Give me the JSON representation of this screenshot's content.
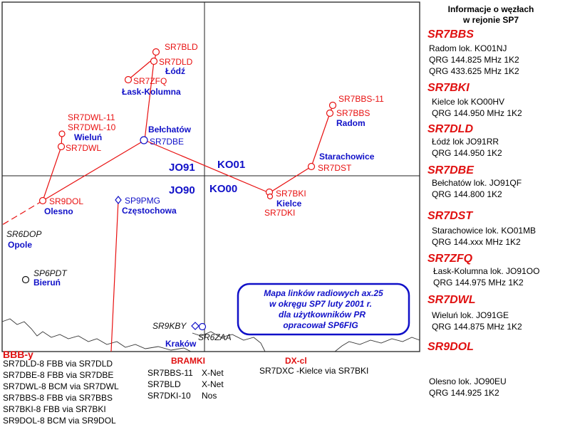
{
  "map": {
    "grid_squares": [
      "JO91",
      "KO01",
      "JO90",
      "KO00"
    ],
    "stations": [
      {
        "call": "SR7BLD",
        "color": "#e81010"
      },
      {
        "call": "SR7DLD",
        "color": "#e81010"
      },
      {
        "call": "Łódź",
        "color": "#1010c8"
      },
      {
        "call": "SR7ZFQ",
        "color": "#e81010"
      },
      {
        "call": "Łask-Kolumna",
        "color": "#1010c8"
      },
      {
        "call": "SR7DWL-11",
        "color": "#e81010"
      },
      {
        "call": "SR7DWL-10",
        "color": "#e81010"
      },
      {
        "call": "Wieluń",
        "color": "#1010c8"
      },
      {
        "call": "SR7DWL",
        "color": "#e81010"
      },
      {
        "call": "Bełchatów",
        "color": "#1010c8"
      },
      {
        "call": "SR7DBE",
        "color": "#1010c8"
      },
      {
        "call": "SR7BBS-11",
        "color": "#e81010"
      },
      {
        "call": "SR7BBS",
        "color": "#e81010"
      },
      {
        "call": "Radom",
        "color": "#1010c8"
      },
      {
        "call": "Starachowice",
        "color": "#1010c8"
      },
      {
        "call": "SR7DST",
        "color": "#e81010"
      },
      {
        "call": "SR9DOL",
        "color": "#e81010"
      },
      {
        "call": "Olesno",
        "color": "#1010c8"
      },
      {
        "call": "SP9PMG",
        "color": "#1010c8"
      },
      {
        "call": "Częstochowa",
        "color": "#1010c8"
      },
      {
        "call": "SR7BKI",
        "color": "#e81010"
      },
      {
        "call": "Kielce",
        "color": "#1010c8"
      },
      {
        "call": "SR7DKI",
        "color": "#e81010"
      },
      {
        "call": "SR6DOP",
        "color": "#111111"
      },
      {
        "call": "Opole",
        "color": "#1010c8"
      },
      {
        "call": "SP6PDT",
        "color": "#111111"
      },
      {
        "call": "Bieruń",
        "color": "#1010c8"
      },
      {
        "call": "SR9KBY",
        "color": "#111111"
      },
      {
        "call": "SR6ZAA",
        "color": "#111111"
      },
      {
        "call": "Kraków",
        "color": "#1010c8"
      }
    ],
    "caption": [
      "Mapa linków radiowych ax.25",
      "w okręgu  SP7  luty 2001 r.",
      "dla użytkowników PR",
      "opracował SP6FIG"
    ]
  },
  "panel": {
    "title_line1": "Informacje o węzłach",
    "title_line2": "w rejonie SP7",
    "nodes": [
      {
        "call": "SR7BBS",
        "lines": [
          "Radom  lok. KO01NJ",
          "QRG 144.825 MHz  1K2",
          "QRG 433.625 MHz 1K2"
        ]
      },
      {
        "call": "SR7BKI",
        "lines": [
          "Kielce  lok KO00HV",
          "QRG 144.950 MHz 1K2"
        ]
      },
      {
        "call": "SR7DLD",
        "lines": [
          "Łódź  lok JO91RR",
          "QRG 144.950  1K2"
        ]
      },
      {
        "call": "SR7DBE",
        "lines": [
          "Bełchatów lok. JO91QF",
          "QRG 144.800 1K2"
        ]
      },
      {
        "call": "SR7DST",
        "lines": [
          "Starachowice lok. KO01MB",
          "QRG 144.xxx MHz    1K2"
        ]
      },
      {
        "call": "SR7ZFQ",
        "lines": [
          "Łask-Kolumna  lok. JO91OO",
          "QRG 144.975 MHz 1K2"
        ]
      },
      {
        "call": "SR7DWL",
        "lines": [
          "Wieluń  lok. JO91GE",
          "QRG 144.875 MHz 1K2"
        ]
      },
      {
        "call": "SR9DOL",
        "lines": [
          "Olesno lok. JO90EU",
          "QRG 144.925  1K2"
        ]
      }
    ]
  },
  "bottom": {
    "bbb_heading": "BBB-y",
    "bbb_items": [
      "SR7DLD-8 FBB via SR7DLD",
      "SR7DBE-8 FBB via SR7DBE",
      "SR7DWL-8 BCM via SR7DWL",
      "SR7BBS-8 FBB via SR7BBS",
      "SR7BKI-8 FBB via SR7BKI",
      "SR9DOL-8 BCM via SR9DOL"
    ],
    "bramki_heading": "BRAMKI",
    "bramki_items": [
      {
        "call": "SR7BBS-11",
        "net": "X-Net"
      },
      {
        "call": "SR7BLD",
        "net": "X-Net"
      },
      {
        "call": "SR7DKI-10",
        "net": "Nos"
      }
    ],
    "dx_heading": "DX-cl",
    "dx_item": "SR7DXC -Kielce via SR7BKI"
  }
}
